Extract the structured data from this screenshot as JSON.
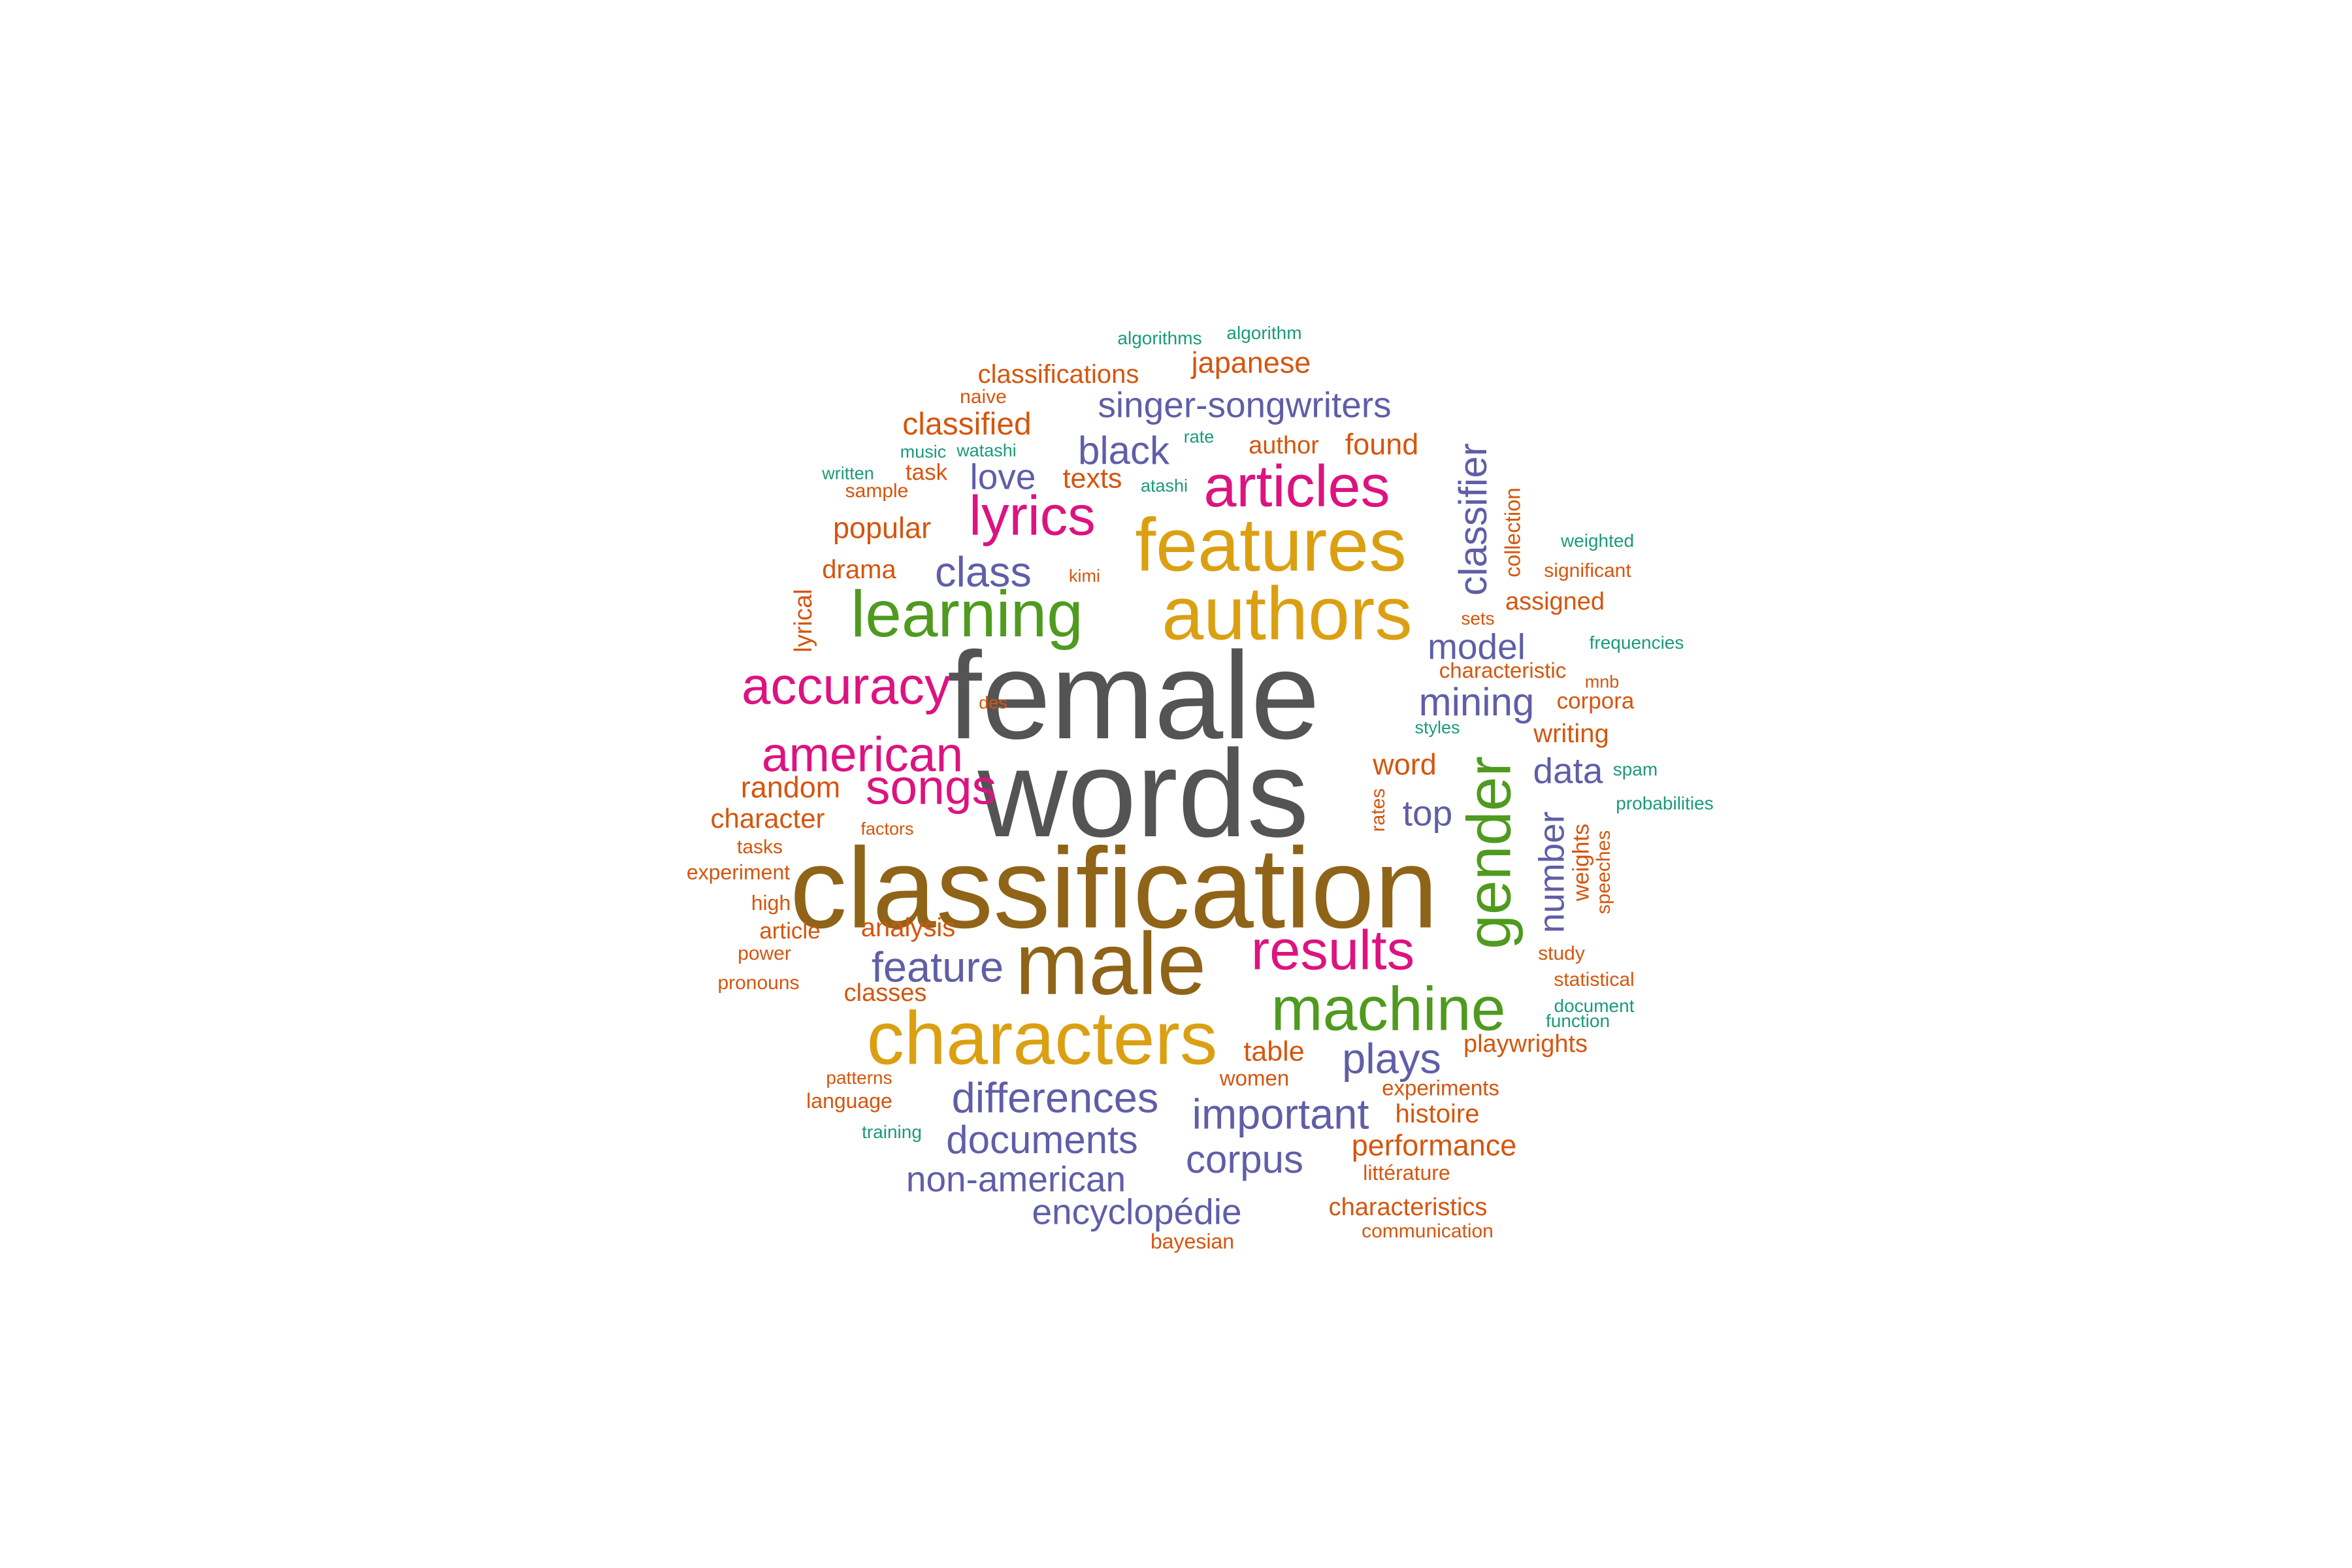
{
  "palette": {
    "gray": "#545454",
    "brown": "#8f6418",
    "gold": "#dba012",
    "green": "#4f9a1f",
    "magenta": "#dc1380",
    "purple": "#605ea7",
    "orange": "#d4560e",
    "teal": "#1b9a78"
  },
  "words": [
    {
      "text": "female",
      "color": "gray"
    },
    {
      "text": "words",
      "color": "gray"
    },
    {
      "text": "classification",
      "color": "brown"
    },
    {
      "text": "male",
      "color": "brown"
    },
    {
      "text": "characters",
      "color": "gold"
    },
    {
      "text": "authors",
      "color": "gold"
    },
    {
      "text": "features",
      "color": "gold"
    },
    {
      "text": "learning",
      "color": "green"
    },
    {
      "text": "machine",
      "color": "green"
    },
    {
      "text": "gender",
      "color": "green"
    },
    {
      "text": "articles",
      "color": "magenta"
    },
    {
      "text": "lyrics",
      "color": "magenta"
    },
    {
      "text": "accuracy",
      "color": "magenta"
    },
    {
      "text": "american",
      "color": "magenta"
    },
    {
      "text": "songs",
      "color": "magenta"
    },
    {
      "text": "results",
      "color": "magenta"
    },
    {
      "text": "singer-songwriters",
      "color": "purple"
    },
    {
      "text": "black",
      "color": "purple"
    },
    {
      "text": "love",
      "color": "purple"
    },
    {
      "text": "class",
      "color": "purple"
    },
    {
      "text": "model",
      "color": "purple"
    },
    {
      "text": "mining",
      "color": "purple"
    },
    {
      "text": "data",
      "color": "purple"
    },
    {
      "text": "top",
      "color": "purple"
    },
    {
      "text": "feature",
      "color": "purple"
    },
    {
      "text": "plays",
      "color": "purple"
    },
    {
      "text": "differences",
      "color": "purple"
    },
    {
      "text": "important",
      "color": "purple"
    },
    {
      "text": "documents",
      "color": "purple"
    },
    {
      "text": "corpus",
      "color": "purple"
    },
    {
      "text": "non-american",
      "color": "purple"
    },
    {
      "text": "encyclopédie",
      "color": "purple"
    },
    {
      "text": "classifier",
      "color": "purple"
    },
    {
      "text": "number",
      "color": "purple"
    },
    {
      "text": "algorithms",
      "color": "teal"
    },
    {
      "text": "algorithm",
      "color": "teal"
    },
    {
      "text": "classifications",
      "color": "orange"
    },
    {
      "text": "japanese",
      "color": "orange"
    },
    {
      "text": "naive",
      "color": "orange"
    },
    {
      "text": "classified",
      "color": "orange"
    },
    {
      "text": "music",
      "color": "teal"
    },
    {
      "text": "watashi",
      "color": "teal"
    },
    {
      "text": "rate",
      "color": "teal"
    },
    {
      "text": "author",
      "color": "orange"
    },
    {
      "text": "found",
      "color": "orange"
    },
    {
      "text": "written",
      "color": "teal"
    },
    {
      "text": "task",
      "color": "orange"
    },
    {
      "text": "sample",
      "color": "orange"
    },
    {
      "text": "texts",
      "color": "orange"
    },
    {
      "text": "atashi",
      "color": "teal"
    },
    {
      "text": "popular",
      "color": "orange"
    },
    {
      "text": "weighted",
      "color": "teal"
    },
    {
      "text": "drama",
      "color": "orange"
    },
    {
      "text": "kimi",
      "color": "orange"
    },
    {
      "text": "significant",
      "color": "orange"
    },
    {
      "text": "assigned",
      "color": "orange"
    },
    {
      "text": "sets",
      "color": "orange"
    },
    {
      "text": "frequencies",
      "color": "teal"
    },
    {
      "text": "characteristic",
      "color": "orange"
    },
    {
      "text": "des",
      "color": "orange"
    },
    {
      "text": "mnb",
      "color": "orange"
    },
    {
      "text": "corpora",
      "color": "orange"
    },
    {
      "text": "styles",
      "color": "teal"
    },
    {
      "text": "writing",
      "color": "orange"
    },
    {
      "text": "word",
      "color": "orange"
    },
    {
      "text": "spam",
      "color": "teal"
    },
    {
      "text": "random",
      "color": "orange"
    },
    {
      "text": "probabilities",
      "color": "teal"
    },
    {
      "text": "character",
      "color": "orange"
    },
    {
      "text": "factors",
      "color": "orange"
    },
    {
      "text": "tasks",
      "color": "orange"
    },
    {
      "text": "experiment",
      "color": "orange"
    },
    {
      "text": "high",
      "color": "orange"
    },
    {
      "text": "analysis",
      "color": "orange"
    },
    {
      "text": "article",
      "color": "orange"
    },
    {
      "text": "power",
      "color": "orange"
    },
    {
      "text": "study",
      "color": "orange"
    },
    {
      "text": "pronouns",
      "color": "orange"
    },
    {
      "text": "classes",
      "color": "orange"
    },
    {
      "text": "statistical",
      "color": "orange"
    },
    {
      "text": "document",
      "color": "teal"
    },
    {
      "text": "function",
      "color": "teal"
    },
    {
      "text": "playwrights",
      "color": "orange"
    },
    {
      "text": "table",
      "color": "orange"
    },
    {
      "text": "patterns",
      "color": "orange"
    },
    {
      "text": "women",
      "color": "orange"
    },
    {
      "text": "experiments",
      "color": "orange"
    },
    {
      "text": "language",
      "color": "orange"
    },
    {
      "text": "histoire",
      "color": "orange"
    },
    {
      "text": "training",
      "color": "teal"
    },
    {
      "text": "performance",
      "color": "orange"
    },
    {
      "text": "littérature",
      "color": "orange"
    },
    {
      "text": "characteristics",
      "color": "orange"
    },
    {
      "text": "bayesian",
      "color": "orange"
    },
    {
      "text": "communication",
      "color": "orange"
    },
    {
      "text": "collection",
      "color": "orange"
    },
    {
      "text": "lyrical",
      "color": "orange"
    },
    {
      "text": "rates",
      "color": "orange"
    },
    {
      "text": "weights",
      "color": "orange"
    },
    {
      "text": "speeches",
      "color": "orange"
    }
  ]
}
